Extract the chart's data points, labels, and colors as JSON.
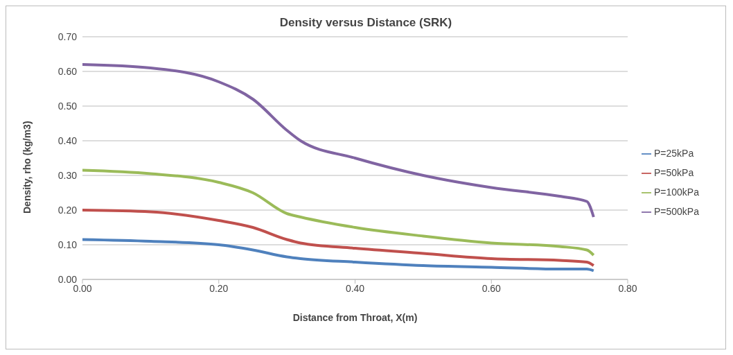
{
  "chart_data": {
    "type": "line",
    "title": "Density versus Distance (SRK)",
    "xlabel": "Distance from Throat, X(m)",
    "ylabel": "Density, rho (kg/m3)",
    "x": [
      0,
      0.1,
      0.2,
      0.25,
      0.3,
      0.32,
      0.4,
      0.5,
      0.6,
      0.7,
      0.74,
      0.75
    ],
    "series": [
      {
        "name": "P=25kPa",
        "color": "#4f81bd",
        "values": [
          0.115,
          0.11,
          0.1,
          0.085,
          0.065,
          0.06,
          0.05,
          0.04,
          0.035,
          0.03,
          0.03,
          0.025
        ]
      },
      {
        "name": "P=50kPa",
        "color": "#c0504d",
        "values": [
          0.2,
          0.195,
          0.17,
          0.15,
          0.115,
          0.105,
          0.09,
          0.075,
          0.06,
          0.055,
          0.05,
          0.04
        ]
      },
      {
        "name": "P=100kPa",
        "color": "#9bbb59",
        "values": [
          0.315,
          0.305,
          0.28,
          0.25,
          0.19,
          0.18,
          0.15,
          0.125,
          0.105,
          0.095,
          0.085,
          0.07
        ]
      },
      {
        "name": "P=500kPa",
        "color": "#8064a2",
        "values": [
          0.62,
          0.61,
          0.57,
          0.52,
          0.43,
          0.4,
          0.35,
          0.3,
          0.265,
          0.24,
          0.225,
          0.18
        ]
      }
    ],
    "xlim": [
      0,
      0.8
    ],
    "xticks": [
      {
        "value": 0,
        "label": "0.00"
      },
      {
        "value": 0.2,
        "label": "0.20"
      },
      {
        "value": 0.4,
        "label": "0.40"
      },
      {
        "value": 0.6,
        "label": "0.60"
      },
      {
        "value": 0.8,
        "label": "0.80"
      }
    ],
    "ylim": [
      0,
      0.7
    ],
    "yticks": [
      {
        "value": 0,
        "label": "0.00"
      },
      {
        "value": 0.1,
        "label": "0.10"
      },
      {
        "value": 0.2,
        "label": "0.20"
      },
      {
        "value": 0.3,
        "label": "0.30"
      },
      {
        "value": 0.4,
        "label": "0.40"
      },
      {
        "value": 0.5,
        "label": "0.50"
      },
      {
        "value": 0.6,
        "label": "0.60"
      },
      {
        "value": 0.7,
        "label": "0.70"
      }
    ],
    "grid": "y",
    "legend": "right",
    "marker": "none",
    "line_style": "solid"
  }
}
